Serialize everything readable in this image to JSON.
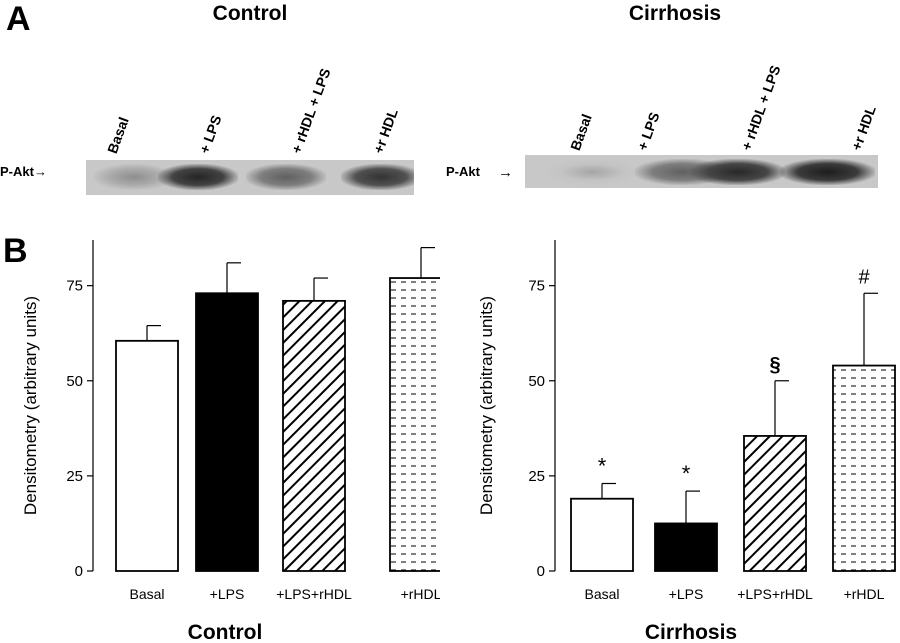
{
  "panels": {
    "a_label": "A",
    "b_label": "B"
  },
  "blots": [
    {
      "title": "Control",
      "marker": "P-Akt→",
      "lanes": [
        "Basal",
        "+ LPS",
        "+ rHDL + LPS",
        "+r HDL"
      ],
      "band_intensity": [
        0.28,
        0.9,
        0.55,
        0.82
      ]
    },
    {
      "title": "Cirrhosis",
      "marker": "P-Akt",
      "lanes": [
        "Basal",
        "+ LPS",
        "+ rHDL + LPS",
        "+r HDL"
      ],
      "band_intensity": [
        0.15,
        0.55,
        0.88,
        0.95
      ]
    }
  ],
  "chart_data": [
    {
      "type": "bar",
      "title": "Control",
      "ylabel": "Densitometry (arbitrary units)",
      "categories": [
        "Basal",
        "+LPS",
        "+LPS+rHDL",
        "+rHDL"
      ],
      "values": [
        60.5,
        73,
        71,
        77
      ],
      "errors": [
        4,
        8,
        6,
        8
      ],
      "patterns": [
        "white",
        "black",
        "diagonal",
        "dashes"
      ],
      "annotations": [
        "",
        "",
        "",
        ""
      ],
      "ylim": [
        0,
        87
      ],
      "yticks": [
        0,
        25,
        50,
        75
      ]
    },
    {
      "type": "bar",
      "title": "Cirrhosis",
      "ylabel": "Densitometry (arbitrary units)",
      "categories": [
        "Basal",
        "+LPS",
        "+LPS+rHDL",
        "+rHDL"
      ],
      "values": [
        19,
        12.5,
        35.5,
        54
      ],
      "errors": [
        4,
        8.5,
        14.5,
        19
      ],
      "patterns": [
        "white",
        "black",
        "diagonal",
        "dashes"
      ],
      "annotations": [
        "*",
        "*",
        "§",
        "#"
      ],
      "ylim": [
        0,
        87
      ],
      "yticks": [
        0,
        25,
        50,
        75
      ]
    }
  ]
}
